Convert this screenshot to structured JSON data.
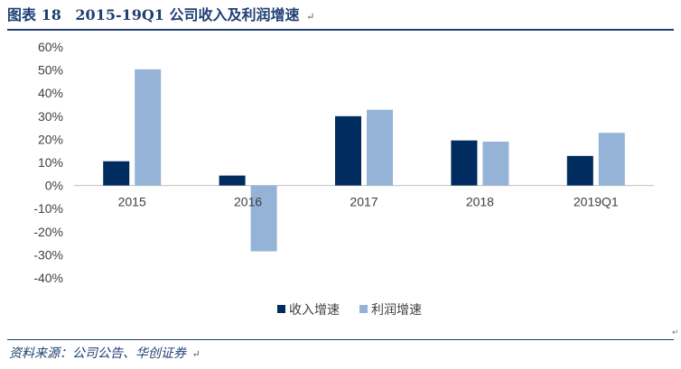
{
  "header": {
    "figure_label": "图表 18",
    "title": "2015-19Q1 公司收入及利润增速",
    "end_mark": "↵"
  },
  "footer": {
    "source": "资料来源：公司公告、华创证券",
    "end_mark": "↵"
  },
  "edge_mark": "↵",
  "colors": {
    "title_text": "#1f3f73",
    "rule": "#1f3f73",
    "axis_text": "#404040",
    "axis_line": "#bfbfbf"
  },
  "chart_data": {
    "type": "bar",
    "categories": [
      "2015",
      "2016",
      "2017",
      "2018",
      "2019Q1"
    ],
    "series": [
      {
        "name": "收入增速",
        "values": [
          10.5,
          4.3,
          30.0,
          19.5,
          12.8
        ],
        "color": "#002c5f"
      },
      {
        "name": "利润增速",
        "values": [
          50.3,
          -28.5,
          32.8,
          19.0,
          22.8
        ],
        "color": "#95b3d7"
      }
    ],
    "yticks": [
      "60%",
      "50%",
      "40%",
      "30%",
      "20%",
      "10%",
      "0%",
      "-10%",
      "-20%",
      "-30%",
      "-40%"
    ],
    "ylim": [
      -40,
      60
    ],
    "legend": "bottom-center",
    "grid": false
  }
}
